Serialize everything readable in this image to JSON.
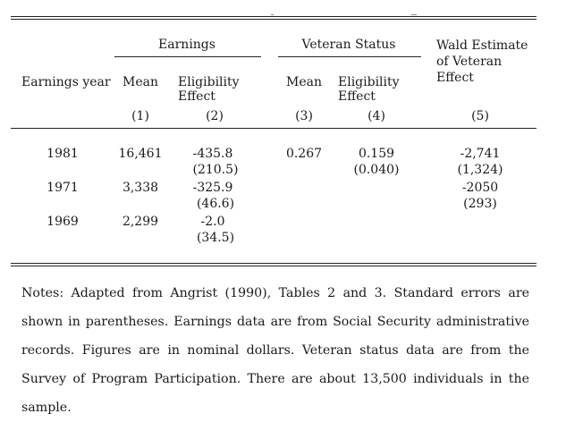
{
  "headers": {
    "earnings": "Earnings",
    "veteran_status": "Veteran Status",
    "wald": "Wald Estimate of Veteran Effect",
    "earnings_year": "Earnings year",
    "mean_1": "Mean",
    "elig_1": "Eligibility Effect",
    "mean_2": "Mean",
    "elig_2": "Eligibility Effect",
    "col_nums": [
      "(1)",
      "(2)",
      "(3)",
      "(4)",
      "(5)"
    ]
  },
  "rows": [
    {
      "year": "1981",
      "mean": "16,461",
      "elig": "-435.8",
      "elig_se": "(210.5)",
      "vet_mean": "0.267",
      "vet_elig": "0.159",
      "vet_elig_se": "(0.040)",
      "wald": "-2,741",
      "wald_se": "(1,324)"
    },
    {
      "year": "1971",
      "mean": "3,338",
      "elig": "-325.9",
      "elig_se": "(46.6)",
      "vet_mean": "",
      "vet_elig": "",
      "vet_elig_se": "",
      "wald": "-2050",
      "wald_se": "(293)"
    },
    {
      "year": "1969",
      "mean": "2,299",
      "elig": "-2.0",
      "elig_se": "(34.5)",
      "vet_mean": "",
      "vet_elig": "",
      "vet_elig_se": "",
      "wald": "",
      "wald_se": ""
    }
  ],
  "notes": "Notes: Adapted from Angrist (1990), Tables 2 and 3. Standard errors are shown in parentheses. Earnings data are from Social Security administrative records. Figures are in nominal dollars. Veteran status data are from the Survey of Program Participation. There are about 13,500 individuals in the sample."
}
